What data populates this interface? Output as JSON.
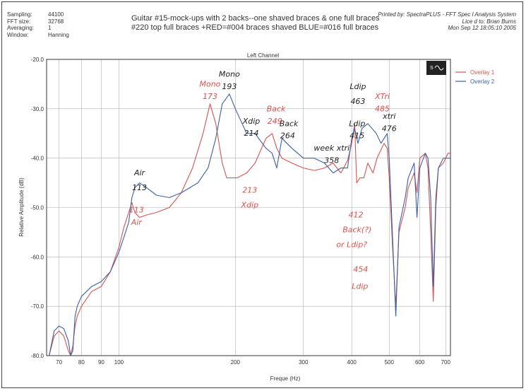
{
  "header": {
    "meta_left": [
      {
        "key": "Sampling:",
        "value": "44100"
      },
      {
        "key": "FFT size:",
        "value": "32768"
      },
      {
        "key": "Averaging:",
        "value": "1"
      },
      {
        "key": "Window:",
        "value": "Hanning"
      }
    ],
    "meta_right": [
      "Printed by: SpectraPLUS - FFT Spec  l Analysis System",
      "Lice     d to: Brian Burns",
      "Mon Sep 12 18:05:10 2005"
    ],
    "title_lines": [
      "Guitar #15-mock-ups with 2 backs--one shaved braces & one full braces",
      "#220 top full braces +RED=#004 braces shaved  BLUE=#016 full braces"
    ]
  },
  "chart_data": {
    "type": "line",
    "title": "Left Channel",
    "xlabel": "Freque   (Hz)",
    "ylabel": "Relative Amplitude (dB)",
    "x_scale": "log",
    "xlim": [
      65,
      720
    ],
    "ylim": [
      -80,
      -20
    ],
    "grid": true,
    "legend_position": "top-right",
    "x_ticks": [
      70,
      80,
      90,
      100,
      200,
      300,
      400,
      500,
      600,
      700
    ],
    "y_ticks": [
      -20,
      -30,
      -40,
      -50,
      -60,
      -70,
      -80
    ],
    "y_tick_labels": [
      "-20.0",
      "-30.0",
      "-40.0",
      "-50.0",
      "-60.0",
      "-70.0",
      "-80.0"
    ],
    "series": [
      {
        "name": "Overlay 1",
        "color": "#d9534f",
        "points": [
          [
            66,
            -80
          ],
          [
            68,
            -76
          ],
          [
            70,
            -75
          ],
          [
            72,
            -76
          ],
          [
            74,
            -79
          ],
          [
            75,
            -80
          ],
          [
            76,
            -78
          ],
          [
            77,
            -74
          ],
          [
            78,
            -72
          ],
          [
            80,
            -70
          ],
          [
            85,
            -67
          ],
          [
            90,
            -66
          ],
          [
            95,
            -63
          ],
          [
            100,
            -58
          ],
          [
            103,
            -54
          ],
          [
            106,
            -51
          ],
          [
            108,
            -49
          ],
          [
            110,
            -51
          ],
          [
            113,
            -52
          ],
          [
            118,
            -51.5
          ],
          [
            125,
            -51
          ],
          [
            135,
            -50
          ],
          [
            145,
            -47
          ],
          [
            155,
            -42
          ],
          [
            165,
            -35
          ],
          [
            172,
            -29
          ],
          [
            178,
            -33
          ],
          [
            185,
            -41
          ],
          [
            190,
            -44
          ],
          [
            196,
            -44
          ],
          [
            202,
            -44
          ],
          [
            214,
            -43
          ],
          [
            225,
            -41
          ],
          [
            240,
            -36
          ],
          [
            249,
            -35
          ],
          [
            256,
            -38
          ],
          [
            264,
            -40
          ],
          [
            280,
            -41
          ],
          [
            300,
            -42
          ],
          [
            320,
            -42.5
          ],
          [
            340,
            -42
          ],
          [
            358,
            -41
          ],
          [
            375,
            -43
          ],
          [
            390,
            -40.5
          ],
          [
            400,
            -37
          ],
          [
            407,
            -33
          ],
          [
            412,
            -45
          ],
          [
            420,
            -44
          ],
          [
            430,
            -44
          ],
          [
            440,
            -41
          ],
          [
            454,
            -43
          ],
          [
            465,
            -40
          ],
          [
            485,
            -37
          ],
          [
            494,
            -38
          ],
          [
            500,
            -44
          ],
          [
            510,
            -58
          ],
          [
            520,
            -70
          ],
          [
            530,
            -55
          ],
          [
            550,
            -50
          ],
          [
            560,
            -46
          ],
          [
            580,
            -43
          ],
          [
            590,
            -47
          ],
          [
            600,
            -40
          ],
          [
            620,
            -39
          ],
          [
            630,
            -42
          ],
          [
            640,
            -55
          ],
          [
            650,
            -69
          ],
          [
            660,
            -50
          ],
          [
            670,
            -42
          ],
          [
            690,
            -41
          ],
          [
            710,
            -39
          ],
          [
            720,
            -39
          ]
        ]
      },
      {
        "name": "Overlay 2",
        "color": "#3a5fa8",
        "points": [
          [
            66,
            -80
          ],
          [
            68,
            -75
          ],
          [
            70,
            -74
          ],
          [
            72,
            -74.5
          ],
          [
            74,
            -77
          ],
          [
            75,
            -80
          ],
          [
            76,
            -79
          ],
          [
            77,
            -72
          ],
          [
            78,
            -70
          ],
          [
            80,
            -68
          ],
          [
            85,
            -66
          ],
          [
            90,
            -65
          ],
          [
            95,
            -63
          ],
          [
            100,
            -59
          ],
          [
            103,
            -56
          ],
          [
            106,
            -53
          ],
          [
            108,
            -48
          ],
          [
            110,
            -46
          ],
          [
            113,
            -45
          ],
          [
            118,
            -46
          ],
          [
            125,
            -47.5
          ],
          [
            135,
            -48
          ],
          [
            145,
            -47
          ],
          [
            160,
            -45
          ],
          [
            170,
            -42
          ],
          [
            178,
            -36
          ],
          [
            185,
            -29
          ],
          [
            193,
            -27
          ],
          [
            200,
            -30
          ],
          [
            214,
            -35
          ],
          [
            225,
            -35
          ],
          [
            240,
            -38
          ],
          [
            249,
            -39
          ],
          [
            256,
            -42
          ],
          [
            264,
            -36
          ],
          [
            280,
            -38
          ],
          [
            300,
            -40
          ],
          [
            320,
            -40
          ],
          [
            340,
            -41
          ],
          [
            358,
            -43
          ],
          [
            375,
            -42
          ],
          [
            390,
            -42
          ],
          [
            400,
            -36
          ],
          [
            407,
            -34
          ],
          [
            415,
            -37
          ],
          [
            425,
            -34
          ],
          [
            440,
            -33
          ],
          [
            463,
            -35
          ],
          [
            476,
            -37
          ],
          [
            485,
            -36
          ],
          [
            494,
            -35
          ],
          [
            500,
            -40
          ],
          [
            510,
            -56
          ],
          [
            520,
            -72
          ],
          [
            530,
            -54
          ],
          [
            550,
            -48
          ],
          [
            560,
            -44
          ],
          [
            580,
            -41
          ],
          [
            590,
            -52
          ],
          [
            600,
            -42
          ],
          [
            620,
            -39
          ],
          [
            630,
            -40
          ],
          [
            640,
            -48
          ],
          [
            650,
            -66
          ],
          [
            660,
            -48
          ],
          [
            670,
            -42
          ],
          [
            690,
            -40
          ],
          [
            710,
            -40
          ],
          [
            720,
            -40
          ]
        ]
      }
    ],
    "annotations": [
      {
        "text": "Air",
        "x": 113,
        "y": -43.5,
        "color": "black"
      },
      {
        "text": "113",
        "x": 113,
        "y": -46.5,
        "color": "black"
      },
      {
        "text": "113",
        "x": 111,
        "y": -51,
        "color": "red"
      },
      {
        "text": "Air",
        "x": 111,
        "y": -53.5,
        "color": "red"
      },
      {
        "text": "Mono",
        "x": 172,
        "y": -25.5,
        "color": "red"
      },
      {
        "text": "173",
        "x": 172,
        "y": -28,
        "color": "red"
      },
      {
        "text": "Mono",
        "x": 193,
        "y": -23.5,
        "color": "black"
      },
      {
        "text": "193",
        "x": 193,
        "y": -26,
        "color": "black"
      },
      {
        "text": "Xdip",
        "x": 220,
        "y": -33,
        "color": "black"
      },
      {
        "text": "214",
        "x": 220,
        "y": -35.5,
        "color": "black"
      },
      {
        "text": "213",
        "x": 218,
        "y": -47,
        "color": "red"
      },
      {
        "text": "Xdip",
        "x": 218,
        "y": -50,
        "color": "red"
      },
      {
        "text": "Back",
        "x": 255,
        "y": -30.5,
        "color": "red"
      },
      {
        "text": "249",
        "x": 253,
        "y": -33,
        "color": "red"
      },
      {
        "text": "Back",
        "x": 275,
        "y": -33.5,
        "color": "black"
      },
      {
        "text": "264",
        "x": 273,
        "y": -36,
        "color": "black"
      },
      {
        "text": "week xtri",
        "x": 355,
        "y": -38.5,
        "color": "black"
      },
      {
        "text": "358",
        "x": 355,
        "y": -41,
        "color": "black"
      },
      {
        "text": "Ldip",
        "x": 415,
        "y": -26,
        "color": "black"
      },
      {
        "text": "463",
        "x": 415,
        "y": -29,
        "color": "black"
      },
      {
        "text": "Ldip",
        "x": 413,
        "y": -33.5,
        "color": "black"
      },
      {
        "text": "415",
        "x": 413,
        "y": -36,
        "color": "black"
      },
      {
        "text": "XTri",
        "x": 480,
        "y": -28,
        "color": "red"
      },
      {
        "text": "485",
        "x": 480,
        "y": -30.5,
        "color": "red"
      },
      {
        "text": "xtri",
        "x": 500,
        "y": -32,
        "color": "black"
      },
      {
        "text": "476",
        "x": 500,
        "y": -34.5,
        "color": "black"
      },
      {
        "text": "412",
        "x": 410,
        "y": -52,
        "color": "red"
      },
      {
        "text": "Back(?)",
        "x": 413,
        "y": -55,
        "color": "red"
      },
      {
        "text": "or Ldip?",
        "x": 400,
        "y": -58,
        "color": "red"
      },
      {
        "text": "454",
        "x": 422,
        "y": -63,
        "color": "red"
      },
      {
        "text": "Ldip",
        "x": 420,
        "y": -66.5,
        "color": "red"
      }
    ]
  }
}
